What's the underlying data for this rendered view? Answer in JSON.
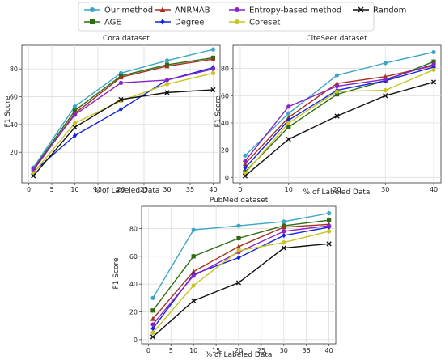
{
  "legend": {
    "placement": "top-center",
    "entries": [
      {
        "label": "Our method",
        "color": "#3AA6C4",
        "marker": "circle"
      },
      {
        "label": "AGE",
        "color": "#2E6B12",
        "marker": "square"
      },
      {
        "label": "ANRMAB",
        "color": "#A4301E",
        "marker": "triangle"
      },
      {
        "label": "Degree",
        "color": "#1326E0",
        "marker": "diamond"
      },
      {
        "label": "Entropy-based method",
        "color": "#8A22C8",
        "marker": "circle"
      },
      {
        "label": "Coreset",
        "color": "#C8C423",
        "marker": "circle"
      },
      {
        "label": "Random",
        "color": "#111111",
        "marker": "x"
      }
    ]
  },
  "chart_data": [
    {
      "type": "line",
      "title": "Cora dataset",
      "xlabel": "% of Labeled Data",
      "ylabel": "F1 Score",
      "x": [
        1,
        10,
        20,
        30,
        40
      ],
      "xticks": [
        0,
        5,
        10,
        15,
        20,
        25,
        30,
        35,
        40
      ],
      "yticks": [
        20,
        40,
        60,
        80
      ],
      "xlim": [
        -1.5,
        41.5
      ],
      "ylim": [
        -2,
        97
      ],
      "grid": true,
      "series": [
        {
          "name": "Our method",
          "values": [
            9,
            53,
            77,
            86,
            94
          ]
        },
        {
          "name": "AGE",
          "values": [
            8,
            50,
            75,
            83,
            88
          ]
        },
        {
          "name": "ANRMAB",
          "values": [
            7,
            48,
            74,
            82,
            87
          ]
        },
        {
          "name": "Degree",
          "values": [
            6,
            32,
            51,
            72,
            81
          ]
        },
        {
          "name": "Entropy-based method",
          "values": [
            8,
            47,
            70,
            72,
            80
          ]
        },
        {
          "name": "Coreset",
          "values": [
            5,
            41,
            57,
            69,
            77
          ]
        },
        {
          "name": "Random",
          "values": [
            3,
            38,
            58,
            63,
            65
          ]
        }
      ]
    },
    {
      "type": "line",
      "title": "CiteSeer dataset",
      "xlabel": "% of Labeled Data",
      "ylabel": "F1 Score",
      "x": [
        1,
        10,
        20,
        30,
        40
      ],
      "xticks": [
        0,
        10,
        20,
        30,
        40
      ],
      "yticks": [
        0,
        20,
        40,
        60,
        80
      ],
      "xlim": [
        -1.5,
        41.5
      ],
      "ylim": [
        -4,
        97
      ],
      "grid": true,
      "series": [
        {
          "name": "Our method",
          "values": [
            16,
            47,
            75,
            84,
            92
          ]
        },
        {
          "name": "AGE",
          "values": [
            4,
            37,
            61,
            71,
            85
          ]
        },
        {
          "name": "ANRMAB",
          "values": [
            10,
            44,
            69,
            74,
            82
          ]
        },
        {
          "name": "Degree",
          "values": [
            7,
            42,
            64,
            71,
            81
          ]
        },
        {
          "name": "Entropy-based method",
          "values": [
            12,
            52,
            67,
            72,
            83
          ]
        },
        {
          "name": "Coreset",
          "values": [
            3,
            40,
            63,
            64,
            79
          ]
        },
        {
          "name": "Random",
          "values": [
            1,
            28,
            45,
            60,
            70
          ]
        }
      ]
    },
    {
      "type": "line",
      "title": "PubMed dataset",
      "xlabel": "% of Labeled Data",
      "ylabel": "F1 Score",
      "x": [
        1,
        10,
        20,
        30,
        40
      ],
      "xticks": [
        0,
        5,
        10,
        15,
        20,
        25,
        30,
        35,
        40
      ],
      "yticks": [
        0,
        20,
        40,
        60,
        80
      ],
      "xlim": [
        -1.5,
        41.5
      ],
      "ylim": [
        -3,
        96
      ],
      "grid": true,
      "series": [
        {
          "name": "Our method",
          "values": [
            30,
            79,
            82,
            85,
            91
          ]
        },
        {
          "name": "AGE",
          "values": [
            21,
            60,
            73,
            82,
            86
          ]
        },
        {
          "name": "ANRMAB",
          "values": [
            15,
            49,
            67,
            81,
            83
          ]
        },
        {
          "name": "Degree",
          "values": [
            8,
            47,
            59,
            75,
            81
          ]
        },
        {
          "name": "Entropy-based method",
          "values": [
            11,
            46,
            63,
            78,
            82
          ]
        },
        {
          "name": "Coreset",
          "values": [
            5,
            39,
            64,
            70,
            78
          ]
        },
        {
          "name": "Random",
          "values": [
            2,
            28,
            41,
            66,
            69
          ]
        }
      ]
    }
  ]
}
